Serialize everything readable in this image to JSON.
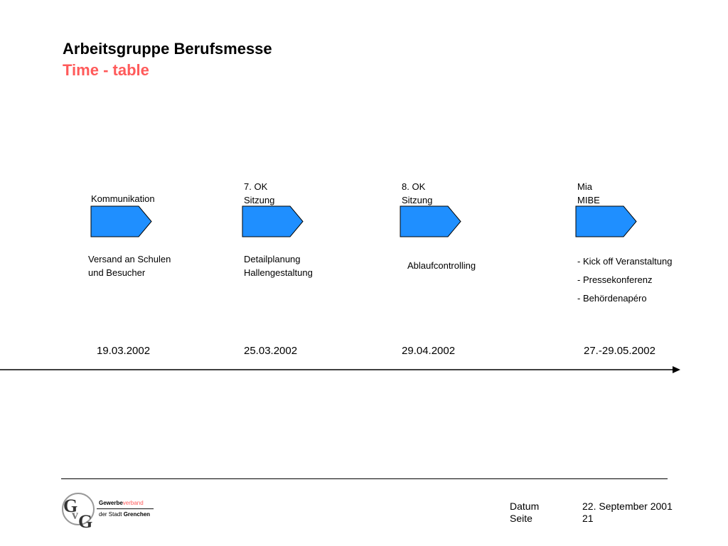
{
  "header": {
    "title": "Arbeitsgruppe Berufsmesse",
    "subtitle": "Time - table"
  },
  "milestones": [
    {
      "label_lines": [
        "Kommunikation"
      ],
      "desc_lines": [
        "Versand an Schulen",
        "und Besucher"
      ],
      "date": "19.03.2002"
    },
    {
      "label_lines": [
        "7. OK",
        "Sitzung"
      ],
      "desc_lines": [
        "Detailplanung",
        "Hallengestaltung"
      ],
      "date": "25.03.2002"
    },
    {
      "label_lines": [
        "8. OK",
        "Sitzung"
      ],
      "desc_lines": [
        "Ablaufcontrolling"
      ],
      "date": "29.04.2002"
    },
    {
      "label_lines": [
        "Mia",
        "MIBE"
      ],
      "desc_lines": [
        "- Kick off Veranstaltung",
        "- Pressekonferenz",
        "- Behördenapéro"
      ],
      "date": "27.-29.05.2002"
    }
  ],
  "colors": {
    "arrow_fill": "#1f8fff",
    "subtitle": "#ff5a5a"
  },
  "footer": {
    "datum_label": "Datum",
    "datum_value": "22. September 2001",
    "seite_label": "Seite",
    "seite_value": "21"
  },
  "logo": {
    "line1_bold": "Gewerbe",
    "line1_light": "verband",
    "line2_prefix": "der Stadt",
    "line2_bold": "Grenchen",
    "icon": "gvg-logo-icon"
  }
}
